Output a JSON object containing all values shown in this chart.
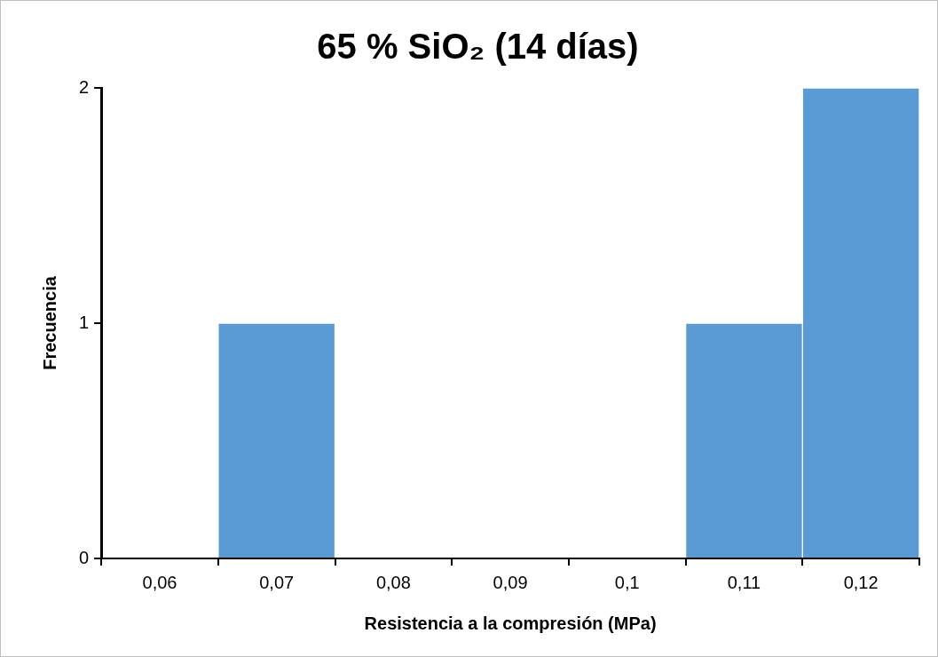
{
  "chart_data": {
    "type": "bar",
    "title": "65 % SiO₂ (14 días)",
    "xlabel": "Resistencia a la compresión (MPa)",
    "ylabel": "Frecuencia",
    "categories": [
      "0,06",
      "0,07",
      "0,08",
      "0,09",
      "0,1",
      "0,11",
      "0,12"
    ],
    "values": [
      0,
      1,
      0,
      0,
      0,
      1,
      2
    ],
    "color": "#5b9bd5",
    "ylim": [
      0,
      2
    ],
    "yticks": [
      0,
      1,
      2
    ],
    "grid": false,
    "legend": false
  }
}
